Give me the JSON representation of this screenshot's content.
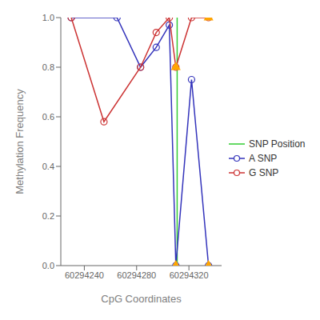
{
  "chart_data": {
    "type": "line",
    "xlabel": "CpG Coordinates",
    "ylabel": "Methylation Frequency",
    "xlim": [
      60294222,
      60294345
    ],
    "xticks": [
      60294240,
      60294280,
      60294320
    ],
    "ylim": [
      0.0,
      1.0
    ],
    "yticks": [
      {
        "value": 0.0,
        "label": "0.0"
      },
      0.2,
      0.4,
      0.6,
      0.8,
      {
        "value": 1.0,
        "label": "1.0"
      }
    ],
    "grid": false,
    "legend": "right",
    "series": [
      {
        "name": "SNP Position",
        "type": "vline",
        "color": "#33cc33",
        "x": [
          60294311
        ],
        "line_style": "solid"
      },
      {
        "name": "A SNP",
        "type": "line",
        "color": "#3333bb",
        "marker": "circle",
        "line_style": "solid",
        "x": [
          60294230,
          60294265,
          60294283,
          60294295,
          60294305,
          60294310,
          60294322,
          60294335
        ],
        "values": [
          1.0,
          1.0,
          0.8,
          0.88,
          0.97,
          0.0,
          0.75,
          0.0
        ]
      },
      {
        "name": "G SNP",
        "type": "line",
        "color": "#cc3333",
        "marker": "circle",
        "line_style": "solid",
        "x": [
          60294230,
          60294255,
          60294283,
          60294295,
          60294305,
          60294310,
          60294322,
          60294335
        ],
        "values": [
          1.0,
          0.58,
          0.8,
          0.94,
          1.0,
          0.8,
          1.0,
          1.0
        ]
      },
      {
        "type": "scatter",
        "color": "#FFA500",
        "marker": "triangle",
        "x": [
          60294310,
          60294335
        ],
        "values": [
          0.0,
          0.0
        ]
      },
      {
        "type": "scatter",
        "color": "#FFA500",
        "marker": "triangle",
        "x": [
          60294310,
          60294335
        ],
        "values": [
          0.8,
          1.0
        ]
      }
    ]
  }
}
